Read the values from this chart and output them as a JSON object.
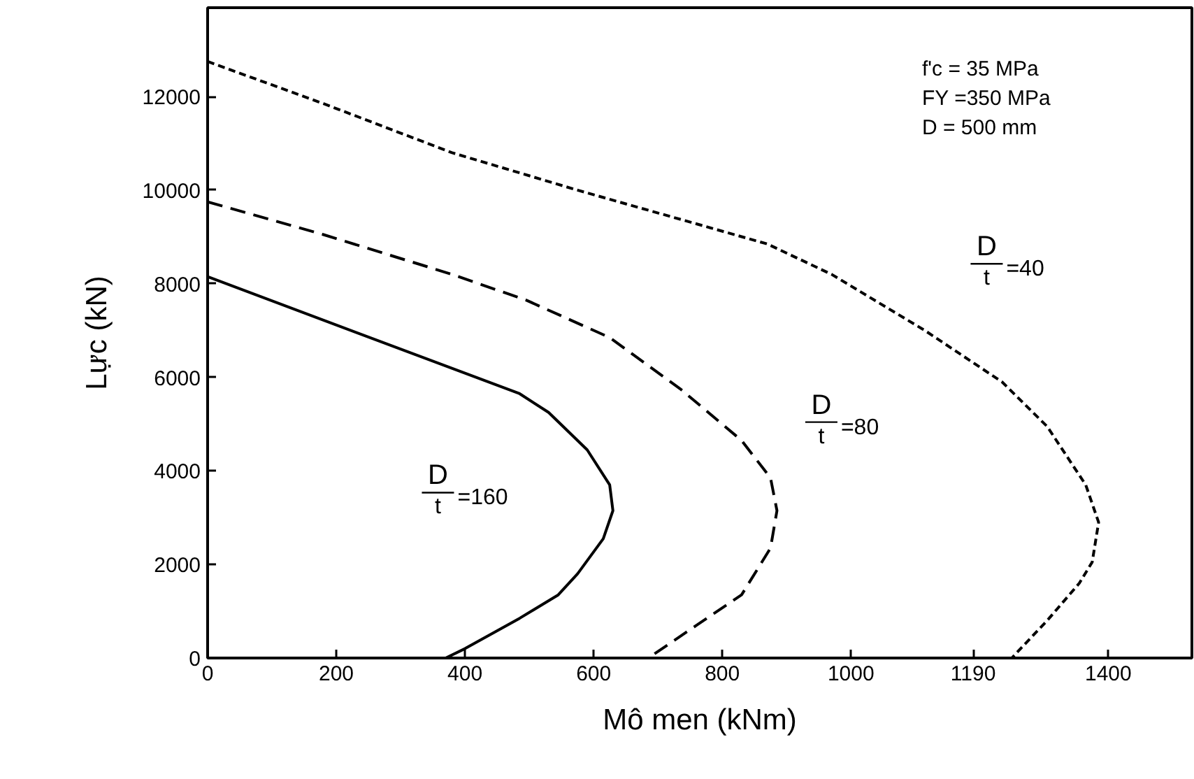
{
  "chart_data": {
    "type": "line",
    "xlabel": "Mô men (kNm)",
    "ylabel": "Lực (kN)",
    "xlim": [
      0,
      1530
    ],
    "ylim": [
      0,
      13900
    ],
    "xticks": [
      0,
      200,
      400,
      600,
      800,
      1000,
      1190,
      1400
    ],
    "yticks": [
      0,
      2000,
      4000,
      6000,
      8000,
      10000,
      12000
    ],
    "grid": false,
    "marker": "none",
    "series": [
      {
        "color": "#000000",
        "line_style": "solid",
        "x": [
          0,
          485,
          530,
          590,
          625,
          630,
          615,
          575,
          545,
          485,
          400,
          370
        ],
        "values": [
          8150,
          5650,
          5250,
          4450,
          3700,
          3150,
          2550,
          1800,
          1350,
          850,
          200,
          0
        ]
      },
      {
        "color": "#000000",
        "line_style": "dashed",
        "x": [
          0,
          180,
          380,
          495,
          625,
          735,
          830,
          875,
          885,
          875,
          830,
          760,
          685
        ],
        "values": [
          9750,
          9050,
          8200,
          7650,
          6850,
          5750,
          4650,
          3850,
          3150,
          2350,
          1350,
          700,
          0
        ]
      },
      {
        "color": "#000000",
        "line_style": "dotted",
        "x": [
          0,
          180,
          380,
          575,
          870,
          970,
          1115,
          1235,
          1305,
          1365,
          1385,
          1375,
          1355,
          1305,
          1250
        ],
        "values": [
          12750,
          11850,
          10800,
          10000,
          8850,
          8200,
          7000,
          5900,
          4950,
          3700,
          2900,
          2050,
          1600,
          800,
          0
        ]
      }
    ],
    "annotations": [
      "f'c = 35 MPa",
      "FY =350 MPa",
      "D = 500 mm",
      "D",
      "t",
      "=160",
      "D",
      "t",
      "=80",
      "D",
      "t",
      "=40"
    ]
  }
}
